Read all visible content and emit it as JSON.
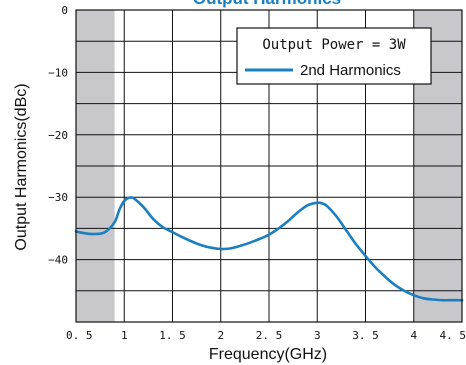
{
  "chart_data": {
    "type": "line",
    "title": "Output Harmonics",
    "xlabel": "Frequency(GHz)",
    "ylabel": "Output Harmonics(dBc)",
    "xlim": [
      0.5,
      4.5
    ],
    "ylim": [
      -50,
      0
    ],
    "xticks": [
      0.5,
      1,
      1.5,
      2,
      2.5,
      3,
      3.5,
      4,
      4.5
    ],
    "xtick_labels": [
      "0. 5",
      "1",
      "1. 5",
      "2",
      "2. 5",
      "3",
      "3. 5",
      "4",
      "4. 5"
    ],
    "yticks": [
      0,
      -10,
      -20,
      -30,
      -40
    ],
    "ytick_labels": [
      "0",
      "−10",
      "−20",
      "−30",
      "−40"
    ],
    "grid": true,
    "shaded_regions": [
      [
        0.5,
        0.9
      ],
      [
        4.0,
        4.5
      ]
    ],
    "shade_color": "#c8c8cc",
    "legend": {
      "condition": "Output Power = 3W",
      "placement": "top-right"
    },
    "series": [
      {
        "name": "2nd Harmonics",
        "color": "#1a7fc1",
        "x": [
          0.5,
          0.6,
          0.7,
          0.8,
          0.9,
          0.95,
          1.0,
          1.05,
          1.1,
          1.2,
          1.3,
          1.4,
          1.5,
          1.6,
          1.7,
          1.8,
          1.9,
          2.0,
          2.1,
          2.2,
          2.3,
          2.4,
          2.5,
          2.6,
          2.7,
          2.8,
          2.9,
          3.0,
          3.05,
          3.1,
          3.2,
          3.3,
          3.4,
          3.5,
          3.6,
          3.7,
          3.8,
          3.9,
          4.0,
          4.1,
          4.2,
          4.3,
          4.4,
          4.5
        ],
        "values": [
          -35.5,
          -35.8,
          -35.9,
          -35.6,
          -34.0,
          -32.0,
          -30.6,
          -30.1,
          -30.2,
          -31.6,
          -33.5,
          -34.8,
          -35.6,
          -36.4,
          -37.1,
          -37.7,
          -38.1,
          -38.3,
          -38.2,
          -37.8,
          -37.3,
          -36.7,
          -36.0,
          -35.0,
          -33.8,
          -32.4,
          -31.3,
          -30.9,
          -31.0,
          -31.4,
          -33.1,
          -35.3,
          -37.5,
          -39.4,
          -41.2,
          -42.7,
          -44.0,
          -45.0,
          -45.7,
          -46.2,
          -46.4,
          -46.5,
          -46.5,
          -46.5
        ]
      }
    ]
  }
}
